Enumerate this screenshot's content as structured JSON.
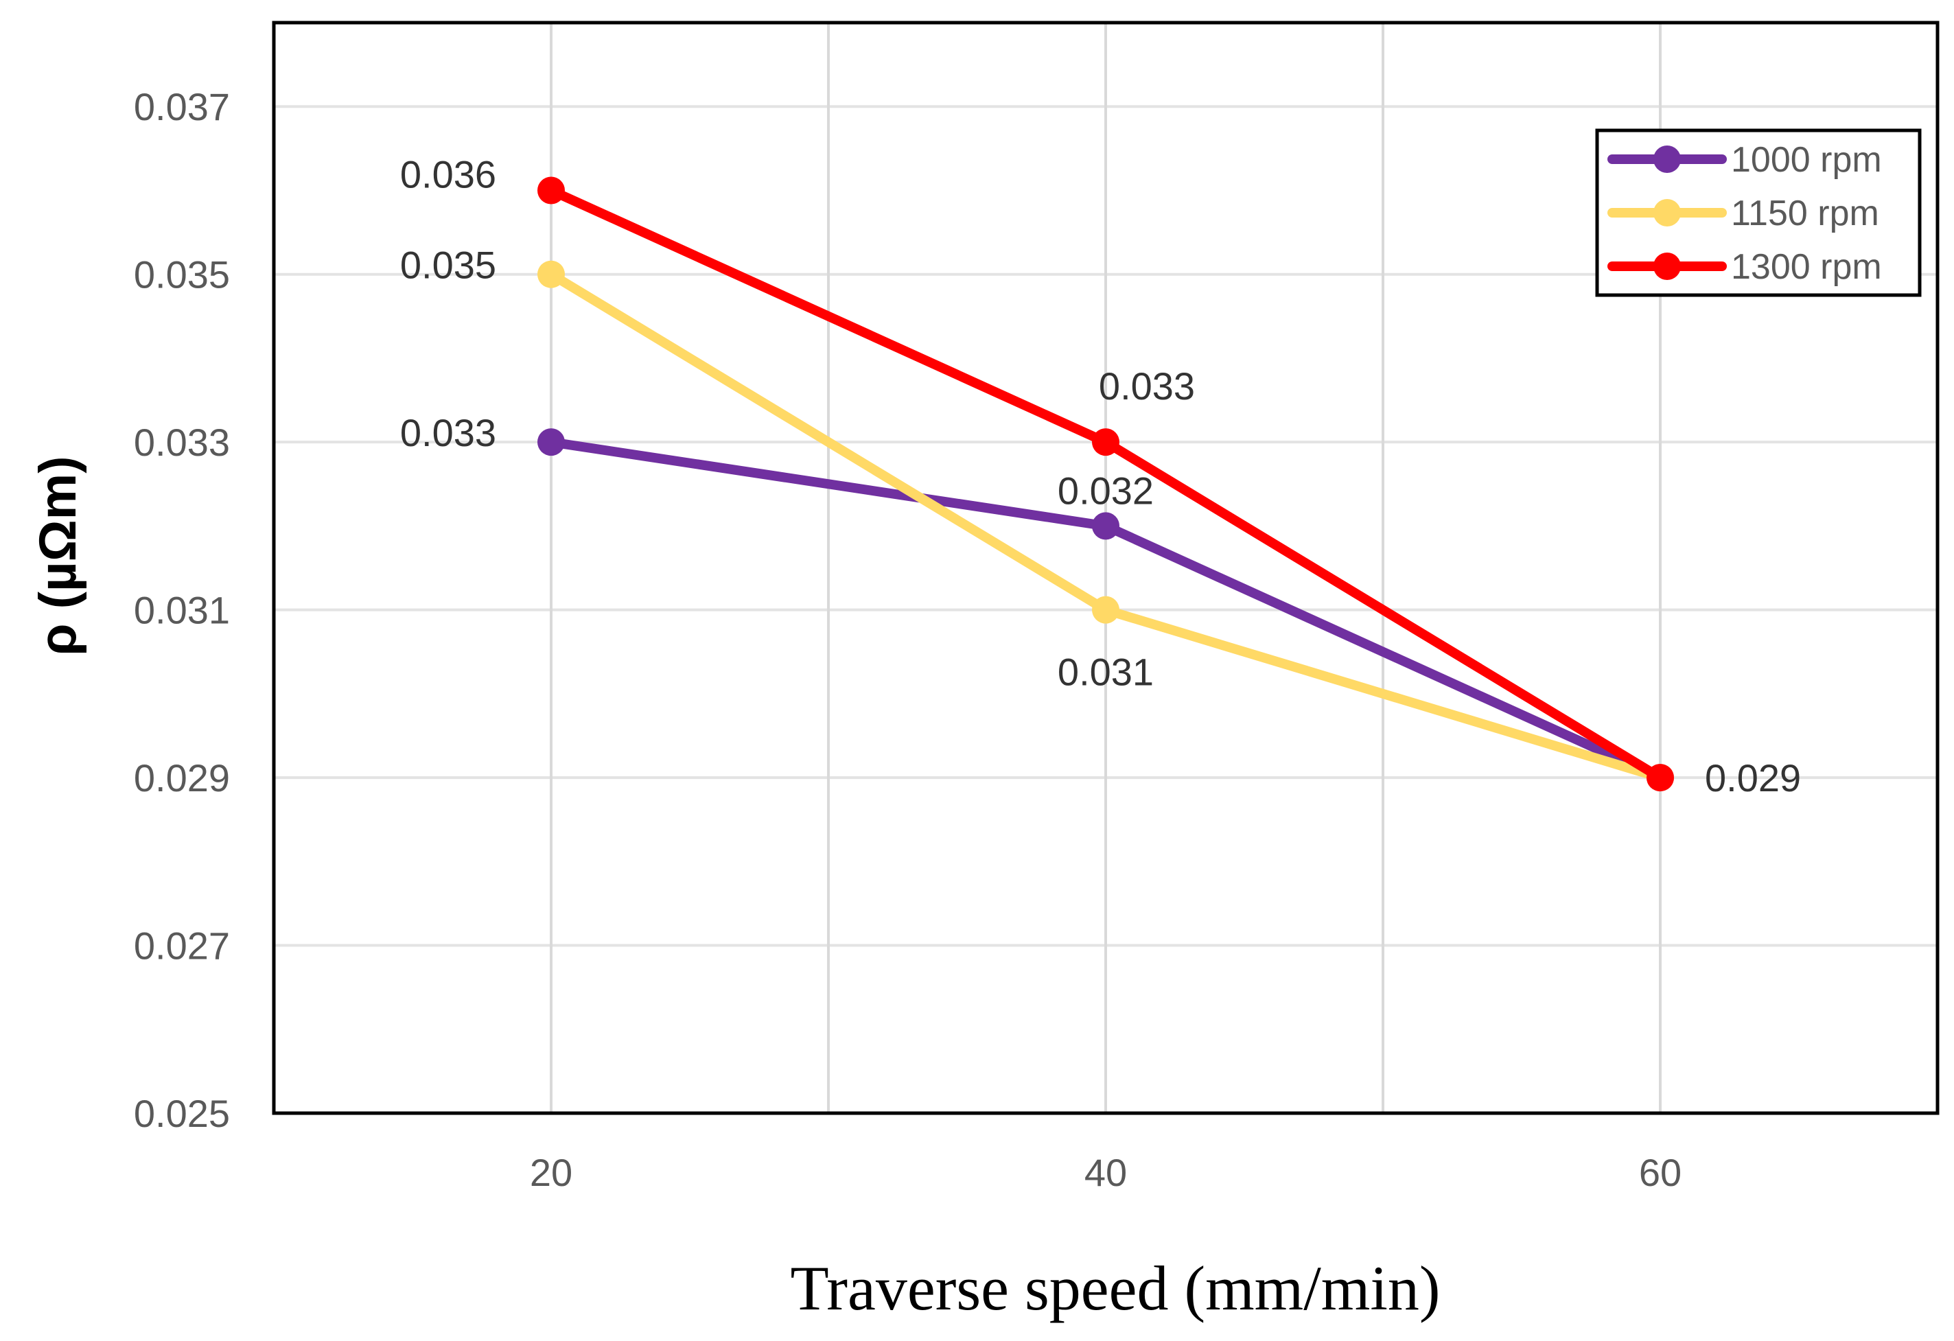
{
  "chart_data": {
    "type": "line",
    "title": "",
    "xlabel": "Traverse speed (mm/min)",
    "ylabel": "ρ (µΩm)",
    "x": [
      20,
      40,
      60
    ],
    "xlim": [
      10,
      70
    ],
    "ylim": [
      0.025,
      0.038
    ],
    "xticks": [
      "20",
      "40",
      "60"
    ],
    "yticks": [
      "0.025",
      "0.027",
      "0.029",
      "0.031",
      "0.033",
      "0.035",
      "0.037"
    ],
    "ytick_values": [
      0.025,
      0.027,
      0.029,
      0.031,
      0.033,
      0.035,
      0.037
    ],
    "grid": true,
    "legend_position": "top-right",
    "series": [
      {
        "name": "1000 rpm",
        "color": "#7030a0",
        "values": [
          0.033,
          0.032,
          0.029
        ],
        "labels": [
          "0.033",
          "0.032",
          ""
        ]
      },
      {
        "name": "1150 rpm",
        "color": "#ffd966",
        "values": [
          0.035,
          0.031,
          0.029
        ],
        "labels": [
          "0.035",
          "0.031",
          ""
        ]
      },
      {
        "name": "1300 rpm",
        "color": "#ff0000",
        "values": [
          0.036,
          0.033,
          0.029
        ],
        "labels": [
          "0.036",
          "0.033",
          "0.029"
        ]
      }
    ]
  }
}
